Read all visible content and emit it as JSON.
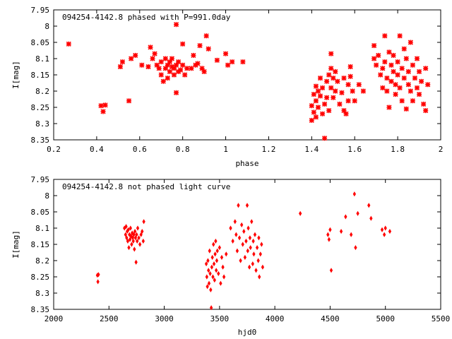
{
  "chart_data": [
    {
      "type": "scatter",
      "title": "094254-4142.8 phased with P=991.0day",
      "xlabel": "phase",
      "ylabel": "I[mag]",
      "xlim": [
        0.2,
        2.0
      ],
      "ylim": [
        7.95,
        8.35
      ],
      "y_inverted": true,
      "x_ticks": [
        "0.2",
        "0.4",
        "0.6",
        "0.8",
        "1",
        "1.2",
        "1.4",
        "1.6",
        "1.8",
        "2"
      ],
      "x_tick_values": [
        0.2,
        0.4,
        0.6,
        0.8,
        1.0,
        1.2,
        1.4,
        1.6,
        1.8,
        2.0
      ],
      "y_ticks": [
        "7.95",
        "8",
        "8.05",
        "8.1",
        "8.15",
        "8.2",
        "8.25",
        "8.3",
        "8.35"
      ],
      "y_tick_values": [
        7.95,
        8.0,
        8.05,
        8.1,
        8.15,
        8.2,
        8.25,
        8.3,
        8.35
      ],
      "marker_color": "#ff0000",
      "grid": false,
      "series": [
        {
          "marker": "cross",
          "points": [
            [
              0.27,
              8.055
            ],
            [
              0.42,
              8.245
            ],
            [
              0.43,
              8.263
            ],
            [
              0.44,
              8.243
            ],
            [
              0.51,
              8.125
            ],
            [
              0.52,
              8.11
            ],
            [
              0.55,
              8.23
            ],
            [
              0.56,
              8.1
            ],
            [
              0.58,
              8.09
            ],
            [
              0.61,
              8.12
            ],
            [
              0.64,
              8.125
            ],
            [
              0.65,
              8.065
            ],
            [
              0.66,
              8.1
            ],
            [
              0.67,
              8.085
            ],
            [
              0.68,
              8.12
            ],
            [
              0.69,
              8.13
            ],
            [
              0.7,
              8.11
            ],
            [
              0.7,
              8.15
            ],
            [
              0.71,
              8.17
            ],
            [
              0.72,
              8.13
            ],
            [
              0.72,
              8.1
            ],
            [
              0.73,
              8.12
            ],
            [
              0.73,
              8.16
            ],
            [
              0.74,
              8.11
            ],
            [
              0.74,
              8.14
            ],
            [
              0.75,
              8.125
            ],
            [
              0.75,
              8.1
            ],
            [
              0.76,
              8.13
            ],
            [
              0.76,
              8.15
            ],
            [
              0.77,
              7.995
            ],
            [
              0.77,
              8.12
            ],
            [
              0.77,
              8.205
            ],
            [
              0.78,
              8.14
            ],
            [
              0.78,
              8.11
            ],
            [
              0.79,
              8.135
            ],
            [
              0.8,
              8.055
            ],
            [
              0.8,
              8.12
            ],
            [
              0.81,
              8.15
            ],
            [
              0.82,
              8.13
            ],
            [
              0.84,
              8.13
            ],
            [
              0.85,
              8.09
            ],
            [
              0.86,
              8.12
            ],
            [
              0.87,
              8.115
            ],
            [
              0.88,
              8.06
            ],
            [
              0.89,
              8.13
            ],
            [
              0.9,
              8.14
            ],
            [
              0.91,
              8.03
            ],
            [
              0.92,
              8.07
            ],
            [
              0.96,
              8.105
            ],
            [
              1.0,
              8.085
            ],
            [
              1.01,
              8.12
            ],
            [
              1.03,
              8.11
            ],
            [
              1.08,
              8.11
            ],
            [
              1.4,
              8.245
            ],
            [
              1.4,
              8.29
            ],
            [
              1.41,
              8.21
            ],
            [
              1.41,
              8.265
            ],
            [
              1.42,
              8.185
            ],
            [
              1.42,
              8.23
            ],
            [
              1.42,
              8.28
            ],
            [
              1.43,
              8.2
            ],
            [
              1.43,
              8.25
            ],
            [
              1.44,
              8.16
            ],
            [
              1.44,
              8.215
            ],
            [
              1.45,
              8.27
            ],
            [
              1.45,
              8.19
            ],
            [
              1.46,
              8.345
            ],
            [
              1.46,
              8.24
            ],
            [
              1.47,
              8.17
            ],
            [
              1.47,
              8.22
            ],
            [
              1.48,
              8.15
            ],
            [
              1.48,
              8.26
            ],
            [
              1.49,
              8.13
            ],
            [
              1.49,
              8.19
            ],
            [
              1.49,
              8.085
            ],
            [
              1.5,
              8.16
            ],
            [
              1.5,
              8.22
            ],
            [
              1.51,
              8.14
            ],
            [
              1.51,
              8.2
            ],
            [
              1.52,
              8.17
            ],
            [
              1.53,
              8.24
            ],
            [
              1.54,
              8.205
            ],
            [
              1.55,
              8.16
            ],
            [
              1.55,
              8.26
            ],
            [
              1.56,
              8.27
            ],
            [
              1.57,
              8.18
            ],
            [
              1.57,
              8.23
            ],
            [
              1.58,
              8.125
            ],
            [
              1.58,
              8.155
            ],
            [
              1.59,
              8.2
            ],
            [
              1.6,
              8.23
            ],
            [
              1.62,
              8.18
            ],
            [
              1.64,
              8.2
            ],
            [
              1.69,
              8.06
            ],
            [
              1.69,
              8.1
            ],
            [
              1.7,
              8.12
            ],
            [
              1.71,
              8.09
            ],
            [
              1.72,
              8.15
            ],
            [
              1.73,
              8.19
            ],
            [
              1.73,
              8.13
            ],
            [
              1.74,
              8.03
            ],
            [
              1.74,
              8.11
            ],
            [
              1.75,
              8.16
            ],
            [
              1.75,
              8.2
            ],
            [
              1.76,
              8.08
            ],
            [
              1.76,
              8.25
            ],
            [
              1.77,
              8.12
            ],
            [
              1.77,
              8.17
            ],
            [
              1.78,
              8.09
            ],
            [
              1.78,
              8.14
            ],
            [
              1.79,
              8.18
            ],
            [
              1.79,
              8.21
            ],
            [
              1.8,
              8.11
            ],
            [
              1.8,
              8.15
            ],
            [
              1.81,
              8.03
            ],
            [
              1.81,
              8.19
            ],
            [
              1.82,
              8.13
            ],
            [
              1.82,
              8.23
            ],
            [
              1.83,
              8.07
            ],
            [
              1.83,
              8.16
            ],
            [
              1.84,
              8.1
            ],
            [
              1.84,
              8.255
            ],
            [
              1.85,
              8.18
            ],
            [
              1.85,
              8.14
            ],
            [
              1.86,
              8.05
            ],
            [
              1.86,
              8.2
            ],
            [
              1.87,
              8.12
            ],
            [
              1.87,
              8.23
            ],
            [
              1.88,
              8.16
            ],
            [
              1.89,
              8.1
            ],
            [
              1.89,
              8.19
            ],
            [
              1.9,
              8.14
            ],
            [
              1.9,
              8.21
            ],
            [
              1.91,
              8.17
            ],
            [
              1.92,
              8.24
            ],
            [
              1.93,
              8.13
            ],
            [
              1.93,
              8.26
            ],
            [
              1.94,
              8.18
            ]
          ]
        }
      ]
    },
    {
      "type": "scatter",
      "title": "094254-4142.8 not phased light curve",
      "xlabel": "hjd0",
      "ylabel": "I[mag]",
      "xlim": [
        2000,
        5500
      ],
      "ylim": [
        7.95,
        8.35
      ],
      "y_inverted": true,
      "x_ticks": [
        "2000",
        "2500",
        "3000",
        "3500",
        "4000",
        "4500",
        "5000",
        "5500"
      ],
      "x_tick_values": [
        2000,
        2500,
        3000,
        3500,
        4000,
        4500,
        5000,
        5500
      ],
      "y_ticks": [
        "7.95",
        "8",
        "8.05",
        "8.1",
        "8.15",
        "8.2",
        "8.25",
        "8.3",
        "8.35"
      ],
      "y_tick_values": [
        7.95,
        8.0,
        8.05,
        8.1,
        8.15,
        8.2,
        8.25,
        8.3,
        8.35
      ],
      "marker_color": "#ff0000",
      "grid": false,
      "series": [
        {
          "marker": "diamond",
          "points": [
            [
              2395,
              8.245
            ],
            [
              2400,
              8.265
            ],
            [
              2405,
              8.243
            ],
            [
              2640,
              8.1
            ],
            [
              2650,
              8.12
            ],
            [
              2655,
              8.095
            ],
            [
              2660,
              8.13
            ],
            [
              2665,
              8.11
            ],
            [
              2670,
              8.14
            ],
            [
              2675,
              8.105
            ],
            [
              2680,
              8.16
            ],
            [
              2685,
              8.12
            ],
            [
              2690,
              8.135
            ],
            [
              2695,
              8.1
            ],
            [
              2700,
              8.125
            ],
            [
              2705,
              8.15
            ],
            [
              2710,
              8.115
            ],
            [
              2715,
              8.13
            ],
            [
              2720,
              8.14
            ],
            [
              2725,
              8.12
            ],
            [
              2730,
              8.165
            ],
            [
              2735,
              8.11
            ],
            [
              2740,
              8.13
            ],
            [
              2745,
              8.205
            ],
            [
              2750,
              8.12
            ],
            [
              2755,
              8.14
            ],
            [
              2760,
              8.1
            ],
            [
              2770,
              8.13
            ],
            [
              2780,
              8.15
            ],
            [
              2790,
              8.12
            ],
            [
              2800,
              8.11
            ],
            [
              2810,
              8.14
            ],
            [
              2815,
              8.08
            ],
            [
              3380,
              8.21
            ],
            [
              3385,
              8.25
            ],
            [
              3390,
              8.28
            ],
            [
              3395,
              8.2
            ],
            [
              3400,
              8.23
            ],
            [
              3405,
              8.27
            ],
            [
              3410,
              8.17
            ],
            [
              3415,
              8.24
            ],
            [
              3420,
              8.29
            ],
            [
              3425,
              8.345
            ],
            [
              3430,
              8.22
            ],
            [
              3435,
              8.19
            ],
            [
              3440,
              8.25
            ],
            [
              3445,
              8.15
            ],
            [
              3450,
              8.21
            ],
            [
              3455,
              8.26
            ],
            [
              3460,
              8.18
            ],
            [
              3465,
              8.14
            ],
            [
              3470,
              8.23
            ],
            [
              3475,
              8.2
            ],
            [
              3480,
              8.17
            ],
            [
              3490,
              8.24
            ],
            [
              3500,
              8.16
            ],
            [
              3510,
              8.27
            ],
            [
              3520,
              8.19
            ],
            [
              3530,
              8.22
            ],
            [
              3540,
              8.25
            ],
            [
              3560,
              8.18
            ],
            [
              3600,
              8.1
            ],
            [
              3620,
              8.14
            ],
            [
              3640,
              8.08
            ],
            [
              3650,
              8.12
            ],
            [
              3660,
              8.17
            ],
            [
              3670,
              8.03
            ],
            [
              3680,
              8.13
            ],
            [
              3690,
              8.2
            ],
            [
              3700,
              8.09
            ],
            [
              3710,
              8.15
            ],
            [
              3720,
              8.11
            ],
            [
              3730,
              8.19
            ],
            [
              3740,
              8.14
            ],
            [
              3750,
              8.03
            ],
            [
              3755,
              8.17
            ],
            [
              3760,
              8.1
            ],
            [
              3770,
              8.22
            ],
            [
              3775,
              8.13
            ],
            [
              3780,
              8.16
            ],
            [
              3790,
              8.08
            ],
            [
              3800,
              8.21
            ],
            [
              3805,
              8.14
            ],
            [
              3810,
              8.18
            ],
            [
              3820,
              8.12
            ],
            [
              3830,
              8.23
            ],
            [
              3840,
              8.16
            ],
            [
              3850,
              8.2
            ],
            [
              3855,
              8.13
            ],
            [
              3860,
              8.25
            ],
            [
              3870,
              8.18
            ],
            [
              3880,
              8.15
            ],
            [
              3890,
              8.22
            ],
            [
              4230,
              8.055
            ],
            [
              4480,
              8.12
            ],
            [
              4490,
              8.135
            ],
            [
              4500,
              8.105
            ],
            [
              4510,
              8.23
            ],
            [
              4600,
              8.11
            ],
            [
              4640,
              8.065
            ],
            [
              4690,
              8.12
            ],
            [
              4730,
              8.16
            ],
            [
              4720,
              7.995
            ],
            [
              4750,
              8.055
            ],
            [
              4850,
              8.03
            ],
            [
              4870,
              8.07
            ],
            [
              4970,
              8.105
            ],
            [
              4990,
              8.12
            ],
            [
              5000,
              8.1
            ],
            [
              5040,
              8.11
            ]
          ]
        }
      ]
    }
  ]
}
